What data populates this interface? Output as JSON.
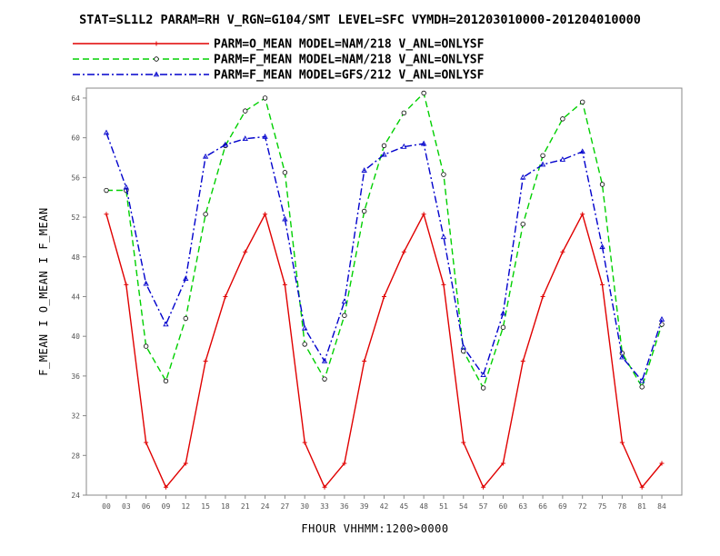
{
  "chart_data": {
    "type": "line",
    "title": "STAT=SL1L2 PARAM=RH V_RGN=G104/SMT LEVEL=SFC VYMDH=201203010000-201204010000",
    "xlabel": "FHOUR VHHMM:1200>0000",
    "ylabel": "F_MEAN I O_MEAN I F_MEAN",
    "categories": [
      "00",
      "03",
      "06",
      "09",
      "12",
      "15",
      "18",
      "21",
      "24",
      "27",
      "30",
      "33",
      "36",
      "39",
      "42",
      "45",
      "48",
      "51",
      "54",
      "57",
      "60",
      "63",
      "66",
      "69",
      "72",
      "75",
      "78",
      "81",
      "84"
    ],
    "ylim": [
      24,
      65
    ],
    "yticks": [
      24,
      28,
      32,
      36,
      40,
      44,
      48,
      52,
      56,
      60,
      64
    ],
    "legend_position": "top-left",
    "series": [
      {
        "name": "PARM=O_MEAN MODEL=NAM/218 V_ANL=ONLYSF",
        "color": "#e00000",
        "dash": "solid",
        "marker": "plus",
        "values": [
          52.3,
          45.2,
          29.3,
          24.8,
          27.2,
          37.5,
          44.0,
          48.5,
          52.3,
          45.2,
          29.3,
          24.8,
          27.2,
          37.5,
          44.0,
          48.5,
          52.3,
          45.2,
          29.3,
          24.8,
          27.2,
          37.5,
          44.0,
          48.5,
          52.3,
          45.2,
          29.3,
          24.8,
          27.2
        ]
      },
      {
        "name": "PARM=F_MEAN MODEL=NAM/218 V_ANL=ONLYSF",
        "color": "#00d000",
        "dash": "dashed",
        "marker": "circle",
        "values": [
          54.7,
          54.7,
          39.0,
          35.5,
          41.8,
          52.3,
          59.2,
          62.7,
          64.0,
          56.5,
          39.2,
          35.7,
          42.1,
          52.6,
          59.2,
          62.5,
          64.5,
          56.3,
          38.5,
          34.8,
          40.9,
          51.3,
          58.2,
          61.9,
          63.6,
          55.3,
          38.3,
          34.9,
          41.2
        ]
      },
      {
        "name": "PARM=F_MEAN MODEL=GFS/212 V_ANL=ONLYSF",
        "color": "#0000cc",
        "dash": "dashdot",
        "marker": "triangle",
        "values": [
          60.5,
          55.0,
          45.3,
          41.2,
          45.8,
          58.1,
          59.3,
          59.9,
          60.1,
          51.8,
          40.8,
          37.5,
          43.5,
          56.7,
          58.3,
          59.1,
          59.4,
          50.0,
          38.9,
          36.1,
          42.3,
          56.0,
          57.3,
          57.8,
          58.6,
          49.0,
          37.9,
          35.5,
          41.7
        ]
      }
    ]
  }
}
